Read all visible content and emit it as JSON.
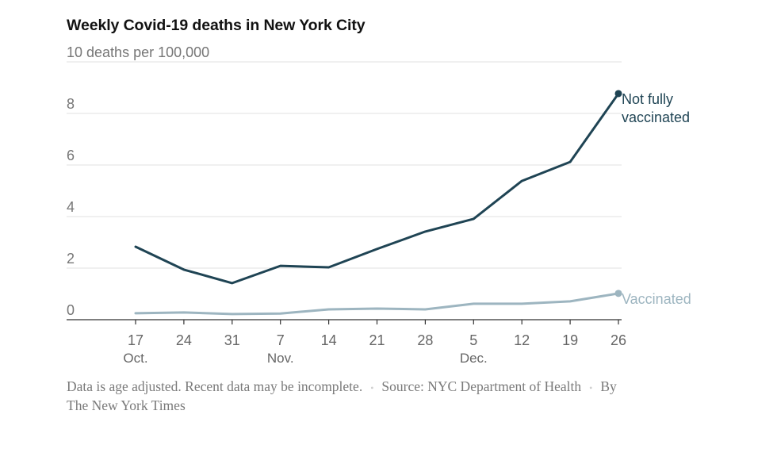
{
  "chart_data": {
    "type": "line",
    "title": "Weekly Covid-19 deaths in New York City",
    "ylabel": "deaths per 100,000",
    "xlabel": "",
    "ylim": [
      0,
      10
    ],
    "yticks": [
      0,
      2,
      4,
      6,
      8,
      10
    ],
    "ytick_labels": [
      "0",
      "2",
      "4",
      "6",
      "8",
      "10 deaths per 100,000"
    ],
    "grid": true,
    "x": [
      "Oct. 17",
      "Oct. 24",
      "Oct. 31",
      "Nov. 7",
      "Nov. 14",
      "Nov. 21",
      "Nov. 28",
      "Dec. 5",
      "Dec. 12",
      "Dec. 19",
      "Dec. 26"
    ],
    "xtick_labels": [
      "17",
      "24",
      "31",
      "7",
      "14",
      "21",
      "28",
      "5",
      "12",
      "19",
      "26"
    ],
    "month_labels": [
      {
        "label": "Oct.",
        "index": 0
      },
      {
        "label": "Nov.",
        "index": 3
      },
      {
        "label": "Dec.",
        "index": 7
      }
    ],
    "series": [
      {
        "name": "Not fully vaccinated",
        "label_lines": [
          "Not fully",
          "vaccinated"
        ],
        "color": "#1f4454",
        "values": [
          2.83,
          1.94,
          1.42,
          2.09,
          2.03,
          2.74,
          3.42,
          3.91,
          5.38,
          6.12,
          8.77
        ]
      },
      {
        "name": "Vaccinated",
        "label_lines": [
          "Vaccinated"
        ],
        "color": "#9db5c0",
        "values": [
          0.25,
          0.28,
          0.22,
          0.24,
          0.4,
          0.43,
          0.4,
          0.62,
          0.62,
          0.71,
          1.02
        ]
      }
    ],
    "legend": "inline-right"
  },
  "footer": {
    "note": "Data is age adjusted. Recent data may be incomplete.",
    "source": "Source: NYC Department of Health",
    "byline_prefix": "By",
    "byline": "The New York Times",
    "separator": "•"
  }
}
